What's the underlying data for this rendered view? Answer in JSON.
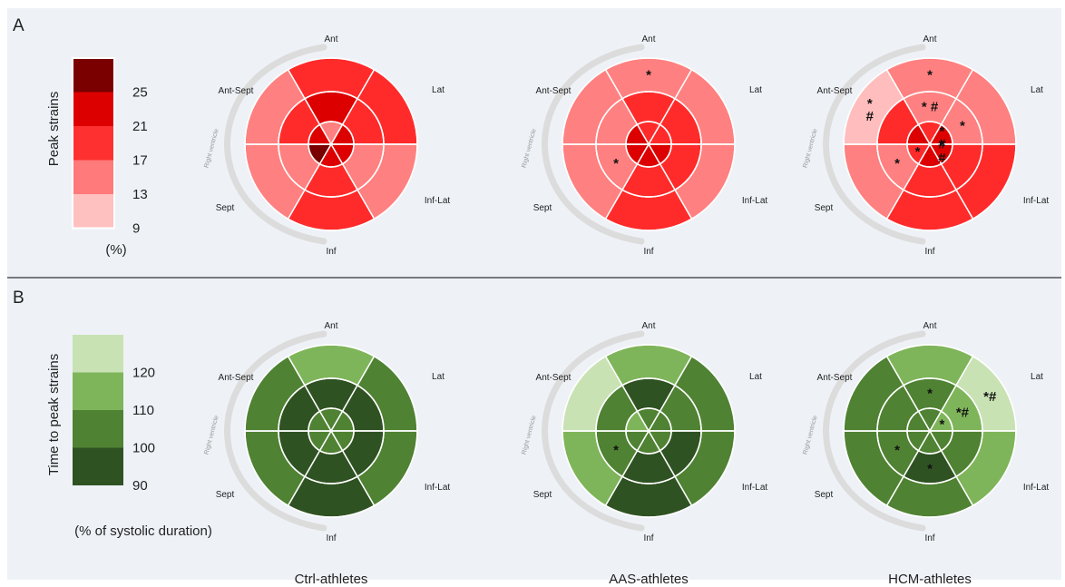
{
  "panels": [
    {
      "letter": "A",
      "legend": {
        "title": "Peak strains",
        "unit": "(%)",
        "ticks": [
          "25",
          "21",
          "17",
          "13",
          "9"
        ],
        "colors": [
          "#7a0000",
          "#dd0000",
          "#ff3030",
          "#ff7a7a",
          "#ffc0c0"
        ]
      },
      "bullseyes": [
        {
          "labels": {
            "ant": "Ant",
            "lat": "Lat",
            "inf_lat": "Inf-Lat",
            "inf": "Inf",
            "sept": "Sept",
            "ant_sept": "Ant-Sept"
          },
          "rv_label": "Right ventricle",
          "outer": [
            "#ff2b2b",
            "#ff2b2b",
            "#ff8080",
            "#ff2b2b",
            "#ff8080",
            "#ff8080"
          ],
          "middle": [
            "#dd0000",
            "#ff2b2b",
            "#ff8080",
            "#ff2b2b",
            "#ff8080",
            "#ff2b2b"
          ],
          "inner": [
            "#ff8080",
            "#dd0000",
            "#dd0000",
            "#dd0000",
            "#7a0000",
            "#dd0000"
          ],
          "marks": []
        },
        {
          "labels": {
            "ant": "Ant",
            "lat": "Lat",
            "inf_lat": "Inf-Lat",
            "inf": "Inf",
            "sept": "Sept",
            "ant_sept": "Ant-Sept"
          },
          "rv_label": "Right ventricle",
          "outer": [
            "#ff8080",
            "#ff8080",
            "#ff8080",
            "#ff2b2b",
            "#ff8080",
            "#ff8080"
          ],
          "middle": [
            "#ff2b2b",
            "#ff2b2b",
            "#ff2b2b",
            "#ff2b2b",
            "#ff8080",
            "#ff8080"
          ],
          "inner": [
            "#ff2b2b",
            "#ff2b2b",
            "#dd0000",
            "#dd0000",
            "#dd0000",
            "#dd0000"
          ],
          "marks": [
            {
              "ring": "outer",
              "seg": 0,
              "text": "*"
            },
            {
              "ring": "middle",
              "seg": 4,
              "text": "*"
            }
          ]
        },
        {
          "labels": {
            "ant": "Ant",
            "lat": "Lat",
            "inf_lat": "Inf-Lat",
            "inf": "Inf",
            "sept": "Sept",
            "ant_sept": "Ant-Sept"
          },
          "rv_label": "Right ventricle",
          "outer": [
            "#ff8080",
            "#ff8080",
            "#ff2b2b",
            "#ff2b2b",
            "#ff8080",
            "#ffbdbd"
          ],
          "middle": [
            "#ff8080",
            "#ff8080",
            "#ff2b2b",
            "#ff2b2b",
            "#ff8080",
            "#ff2b2b"
          ],
          "inner": [
            "#ff2b2b",
            "#dd0000",
            "#dd0000",
            "#dd0000",
            "#ff2b2b",
            "#dd0000"
          ],
          "marks": [
            {
              "ring": "outer",
              "seg": 0,
              "text": "*"
            },
            {
              "ring": "outer",
              "seg": 5,
              "text": "*\n#"
            },
            {
              "ring": "middle",
              "seg": 0,
              "text": "* #"
            },
            {
              "ring": "middle",
              "seg": 1,
              "text": "*"
            },
            {
              "ring": "middle",
              "seg": 4,
              "text": "*"
            },
            {
              "ring": "inner",
              "seg": 1,
              "text": "*\n#"
            },
            {
              "ring": "inner",
              "seg": 2,
              "text": "*\n#"
            },
            {
              "ring": "inner",
              "seg": 4,
              "text": "*"
            }
          ]
        }
      ]
    },
    {
      "letter": "B",
      "legend": {
        "title": "Time to peak strains",
        "unit": "(% of systolic duration)",
        "ticks": [
          "120",
          "110",
          "100",
          "90"
        ],
        "colors": [
          "#c8e2b4",
          "#7fb55a",
          "#4f8233",
          "#2f5222"
        ]
      },
      "bullseyes": [
        {
          "labels": {
            "ant": "Ant",
            "lat": "Lat",
            "inf_lat": "Inf-Lat",
            "inf": "Inf",
            "sept": "Sept",
            "ant_sept": "Ant-Sept"
          },
          "rv_label": "Right ventricle",
          "outer": [
            "#7fb55a",
            "#4f8233",
            "#4f8233",
            "#2f5222",
            "#4f8233",
            "#4f8233"
          ],
          "middle": [
            "#2f5222",
            "#2f5222",
            "#2f5222",
            "#2f5222",
            "#2f5222",
            "#2f5222"
          ],
          "inner": [
            "#4f8233",
            "#4f8233",
            "#4f8233",
            "#4f8233",
            "#4f8233",
            "#4f8233"
          ],
          "marks": []
        },
        {
          "labels": {
            "ant": "Ant",
            "lat": "Lat",
            "inf_lat": "Inf-Lat",
            "inf": "Inf",
            "sept": "Sept",
            "ant_sept": "Ant-Sept"
          },
          "rv_label": "Right ventricle",
          "outer": [
            "#7fb55a",
            "#4f8233",
            "#4f8233",
            "#2f5222",
            "#7fb55a",
            "#c8e2b4"
          ],
          "middle": [
            "#2f5222",
            "#4f8233",
            "#2f5222",
            "#2f5222",
            "#4f8233",
            "#4f8233"
          ],
          "inner": [
            "#4f8233",
            "#4f8233",
            "#4f8233",
            "#4f8233",
            "#4f8233",
            "#7fb55a"
          ],
          "marks": [
            {
              "ring": "middle",
              "seg": 4,
              "text": "*"
            }
          ]
        },
        {
          "labels": {
            "ant": "Ant",
            "lat": "Lat",
            "inf_lat": "Inf-Lat",
            "inf": "Inf",
            "sept": "Sept",
            "ant_sept": "Ant-Sept"
          },
          "rv_label": "Right ventricle",
          "outer": [
            "#7fb55a",
            "#c8e2b4",
            "#7fb55a",
            "#4f8233",
            "#4f8233",
            "#4f8233"
          ],
          "middle": [
            "#4f8233",
            "#7fb55a",
            "#4f8233",
            "#2f5222",
            "#4f8233",
            "#4f8233"
          ],
          "inner": [
            "#4f8233",
            "#7fb55a",
            "#4f8233",
            "#4f8233",
            "#4f8233",
            "#4f8233"
          ],
          "marks": [
            {
              "ring": "outer",
              "seg": 1,
              "text": "*#"
            },
            {
              "ring": "middle",
              "seg": 0,
              "text": "*"
            },
            {
              "ring": "middle",
              "seg": 1,
              "text": "*#"
            },
            {
              "ring": "middle",
              "seg": 3,
              "text": "*"
            },
            {
              "ring": "middle",
              "seg": 4,
              "text": "*"
            },
            {
              "ring": "inner",
              "seg": 1,
              "text": "*"
            }
          ]
        }
      ]
    }
  ],
  "group_labels": [
    "Ctrl-athletes",
    "AAS-athletes",
    "HCM-athletes"
  ],
  "colors": {
    "background": "#eef2f7",
    "divider": "#333333",
    "separator": "#ffffff",
    "rv_arc": "#dcdcdc"
  }
}
